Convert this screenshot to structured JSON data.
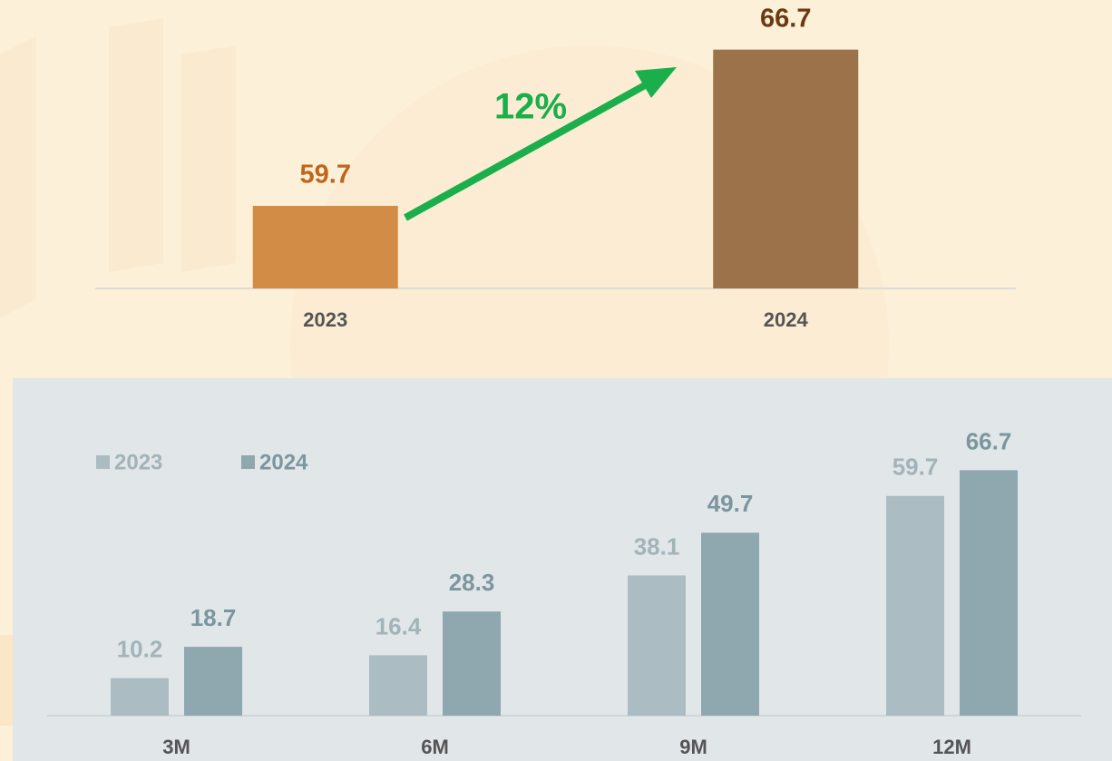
{
  "chart_data": [
    {
      "type": "bar",
      "categories": [
        "2023",
        "2024"
      ],
      "values": [
        59.7,
        66.7
      ],
      "colors": [
        "#d38c45",
        "#9b7249"
      ],
      "label_colors": [
        "#c0651a",
        "#6b3a10"
      ],
      "ylim": [
        56,
        67.5
      ],
      "annotation": "12%",
      "annotation_color": "#1aaf4b"
    },
    {
      "type": "grouped-bar",
      "categories": [
        "3M",
        "6M",
        "9M",
        "12M"
      ],
      "series": [
        {
          "name": "2023",
          "color": "#abbcc2",
          "label_color": "#a2b3b9",
          "values": [
            10.2,
            16.4,
            38.1,
            59.7
          ]
        },
        {
          "name": "2024",
          "color": "#8fa7ae",
          "label_color": "#7b969f",
          "values": [
            18.7,
            28.3,
            49.7,
            66.7
          ]
        }
      ],
      "ylim": [
        0,
        70
      ],
      "legend": "top-left"
    }
  ]
}
